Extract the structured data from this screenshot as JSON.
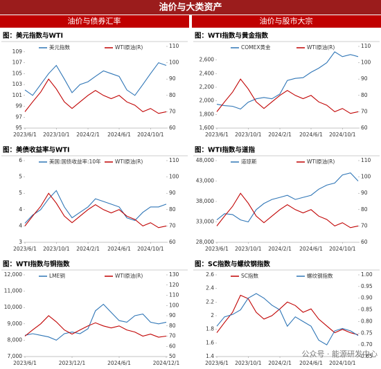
{
  "header": {
    "title": "油价与大类资产",
    "sections": [
      "油价与债券汇率",
      "油价与股市大宗"
    ]
  },
  "watermark": "公众号 · 能源研发中心",
  "chart_data": [
    {
      "type": "line",
      "title": "图：美元指数与WTI",
      "x": [
        "2023/6/1",
        "2023/7/1",
        "2023/8/1",
        "2023/9/1",
        "2023/10/1",
        "2023/11/1",
        "2023/12/1",
        "2024/1/1",
        "2024/2/1",
        "2024/3/1",
        "2024/4/1",
        "2024/5/1",
        "2024/6/1",
        "2024/7/1",
        "2024/8/1",
        "2024/9/1",
        "2024/10/1",
        "2024/11/1",
        "2024/12/1"
      ],
      "xlim": [
        "2023/6/1",
        "2024/12/1"
      ],
      "xticks": [
        "2023/6/1",
        "2023/10/1",
        "2024/2/1",
        "2024/6/1",
        "2024/10/1"
      ],
      "ylim": [
        95,
        110
      ],
      "yticks": [
        95,
        97,
        99,
        101,
        103,
        105,
        107,
        109
      ],
      "y2lim": [
        60,
        110
      ],
      "y2ticks": [
        60,
        70,
        80,
        90,
        100,
        110
      ],
      "series": [
        {
          "name": "美元指数",
          "color": "#2e75b6",
          "values": [
            102,
            101,
            103,
            105,
            106.5,
            104,
            101.5,
            103,
            103.5,
            104.5,
            105.5,
            105,
            104.5,
            102,
            101,
            103,
            105,
            107,
            106.5
          ]
        },
        {
          "name": "WTI原油(R)",
          "color": "#c00000",
          "axis": "y2",
          "values": [
            70,
            76,
            82,
            90,
            84,
            76,
            72,
            76,
            80,
            83,
            80,
            78,
            80,
            76,
            74,
            70,
            72,
            69,
            70
          ]
        }
      ]
    },
    {
      "type": "line",
      "title": "图：WTI指数与黄金指数",
      "x": [
        "2023/6/1",
        "2023/7/1",
        "2023/8/1",
        "2023/9/1",
        "2023/10/1",
        "2023/11/1",
        "2023/12/1",
        "2024/1/1",
        "2024/2/1",
        "2024/3/1",
        "2024/4/1",
        "2024/5/1",
        "2024/6/1",
        "2024/7/1",
        "2024/8/1",
        "2024/9/1",
        "2024/10/1",
        "2024/11/1",
        "2024/12/1"
      ],
      "xlim": [
        "2023/6/1",
        "2024/12/1"
      ],
      "xticks": [
        "2023/6/1",
        "2023/10/1",
        "2024/2/1",
        "2024/6/1",
        "2024/10/1"
      ],
      "ylim": [
        1600,
        2800
      ],
      "yticks": [
        {
          "value": 1600,
          "label": "1,600"
        },
        {
          "value": 1800,
          "label": "1,800"
        },
        {
          "value": 2000,
          "label": "2,000"
        },
        {
          "value": 2200,
          "label": "2,200"
        },
        {
          "value": 2400,
          "label": "2,400"
        },
        {
          "value": 2600,
          "label": "2,600"
        }
      ],
      "y2lim": [
        60,
        110
      ],
      "y2ticks": [
        60,
        70,
        80,
        90,
        100,
        110
      ],
      "series": [
        {
          "name": "COMEX黄金",
          "color": "#2e75b6",
          "values": [
            1950,
            1930,
            1920,
            1880,
            1980,
            2030,
            2050,
            2030,
            2100,
            2300,
            2330,
            2340,
            2420,
            2480,
            2560,
            2720,
            2650,
            2680,
            2650
          ]
        },
        {
          "name": "WTI原油(R)",
          "color": "#c00000",
          "axis": "y2",
          "values": [
            70,
            76,
            82,
            90,
            84,
            76,
            72,
            76,
            80,
            83,
            80,
            78,
            80,
            76,
            74,
            70,
            72,
            69,
            70
          ]
        }
      ]
    },
    {
      "type": "line",
      "title": "图：美债收益率与WTI",
      "x": [
        "2023/6/1",
        "2023/7/1",
        "2023/8/1",
        "2023/9/1",
        "2023/10/1",
        "2023/11/1",
        "2023/12/1",
        "2024/1/1",
        "2024/2/1",
        "2024/3/1",
        "2024/4/1",
        "2024/5/1",
        "2024/6/1",
        "2024/7/1",
        "2024/8/1",
        "2024/9/1",
        "2024/10/1",
        "2024/11/1",
        "2024/12/1"
      ],
      "xlim": [
        "2023/6/1",
        "2024/12/1"
      ],
      "xticks": [
        "2023/6/1",
        "2023/10/1",
        "2024/2/1",
        "2024/6/1",
        "2024/10/1"
      ],
      "ylim": [
        3,
        6
      ],
      "yticks": [
        3,
        {
          "value": 3.6,
          "label": "4"
        },
        {
          "value": 4.2,
          "label": "4"
        },
        {
          "value": 4.8,
          "label": "5"
        },
        {
          "value": 5.4,
          "label": "5"
        },
        6
      ],
      "y2lim": [
        60,
        110
      ],
      "y2ticks": [
        60,
        70,
        80,
        90,
        100,
        110
      ],
      "series": [
        {
          "name": "美国:国债收益率:10年",
          "color": "#2e75b6",
          "values": [
            3.7,
            4.0,
            4.2,
            4.6,
            4.9,
            4.3,
            3.9,
            4.1,
            4.3,
            4.6,
            4.5,
            4.4,
            4.3,
            3.9,
            3.8,
            4.1,
            4.3,
            4.3,
            4.4
          ]
        },
        {
          "name": "WTI原油(R)",
          "color": "#c00000",
          "axis": "y2",
          "values": [
            70,
            76,
            82,
            90,
            84,
            76,
            72,
            76,
            80,
            83,
            80,
            78,
            80,
            76,
            74,
            70,
            72,
            69,
            70
          ]
        }
      ]
    },
    {
      "type": "line",
      "title": "图：WTI指数与道指",
      "x": [
        "2023/6/1",
        "2023/7/1",
        "2023/8/1",
        "2023/9/1",
        "2023/10/1",
        "2023/11/1",
        "2023/12/1",
        "2024/1/1",
        "2024/2/1",
        "2024/3/1",
        "2024/4/1",
        "2024/5/1",
        "2024/6/1",
        "2024/7/1",
        "2024/8/1",
        "2024/9/1",
        "2024/10/1",
        "2024/11/1",
        "2024/12/1"
      ],
      "xlim": [
        "2023/6/1",
        "2024/12/1"
      ],
      "xticks": [
        "2023/6/1",
        "2023/10/1",
        "2024/2/1",
        "2024/6/1",
        "2024/10/1"
      ],
      "ylim": [
        28000,
        48000
      ],
      "yticks": [
        {
          "value": 28000,
          "label": "28,000"
        },
        {
          "value": 33000,
          "label": "33,000"
        },
        {
          "value": 38000,
          "label": "38,000"
        },
        {
          "value": 43000,
          "label": "43,000"
        },
        {
          "value": 48000,
          "label": "48,000"
        }
      ],
      "y2lim": [
        60,
        110
      ],
      "y2ticks": [
        60,
        70,
        80,
        90,
        100,
        110
      ],
      "series": [
        {
          "name": "道琼斯",
          "color": "#2e75b6",
          "values": [
            33500,
            35000,
            34800,
            33500,
            33000,
            36000,
            37500,
            38500,
            39000,
            39500,
            38500,
            39000,
            39500,
            41000,
            42000,
            42500,
            44500,
            45000,
            43000
          ]
        },
        {
          "name": "WTI原油(R)",
          "color": "#c00000",
          "axis": "y2",
          "values": [
            70,
            76,
            82,
            90,
            84,
            76,
            72,
            76,
            80,
            83,
            80,
            78,
            80,
            76,
            74,
            70,
            72,
            69,
            70
          ]
        }
      ]
    },
    {
      "type": "line",
      "title": "图：WTI指数与铜指数",
      "x": [
        "2023/6/1",
        "2023/7/1",
        "2023/8/1",
        "2023/9/1",
        "2023/10/1",
        "2023/11/1",
        "2023/12/1",
        "2024/1/1",
        "2024/2/1",
        "2024/3/1",
        "2024/4/1",
        "2024/5/1",
        "2024/6/1",
        "2024/7/1",
        "2024/8/1",
        "2024/9/1",
        "2024/10/1",
        "2024/11/1",
        "2024/12/1"
      ],
      "xlim": [
        "2023/6/1",
        "2024/12/1"
      ],
      "xticks": [
        "2023/6/1",
        "2023/12/1",
        "2024/6/1",
        "2024/12/1"
      ],
      "ylim": [
        7000,
        12000
      ],
      "yticks": [
        {
          "value": 7000,
          "label": "7,000"
        },
        {
          "value": 8000,
          "label": "8,000"
        },
        {
          "value": 9000,
          "label": "9,000"
        },
        {
          "value": 10000,
          "label": "10,000"
        },
        {
          "value": 11000,
          "label": "11,000"
        },
        {
          "value": 12000,
          "label": "12,000"
        }
      ],
      "y2lim": [
        50,
        130
      ],
      "y2ticks": [
        50,
        60,
        70,
        80,
        90,
        100,
        110,
        120,
        130
      ],
      "series": [
        {
          "name": "LME铜",
          "color": "#2e75b6",
          "values": [
            8300,
            8400,
            8300,
            8200,
            8000,
            8400,
            8500,
            8400,
            8700,
            9800,
            10200,
            9700,
            9200,
            9100,
            9500,
            9600,
            9100,
            9000,
            9100
          ]
        },
        {
          "name": "WTI原油(R)",
          "color": "#c00000",
          "axis": "y2",
          "values": [
            70,
            76,
            82,
            90,
            84,
            76,
            72,
            76,
            80,
            83,
            80,
            78,
            80,
            76,
            74,
            70,
            72,
            69,
            70
          ]
        }
      ]
    },
    {
      "type": "line",
      "title": "图：SC指数与螺纹钢指数",
      "x": [
        "2023/6/1",
        "2023/7/1",
        "2023/8/1",
        "2023/9/1",
        "2023/10/1",
        "2023/11/1",
        "2023/12/1",
        "2024/1/1",
        "2024/2/1",
        "2024/3/1",
        "2024/4/1",
        "2024/5/1",
        "2024/6/1",
        "2024/7/1",
        "2024/8/1",
        "2024/9/1",
        "2024/10/1",
        "2024/11/1",
        "2024/12/1"
      ],
      "xlim": [
        "2023/6/1",
        "2024/12/1"
      ],
      "xticks": [
        "2023/6/1",
        "2023/10/1",
        "2024/2/1",
        "2024/6/1",
        "2024/10/1"
      ],
      "ylim": [
        1.4,
        2.6
      ],
      "yticks": [
        1.4,
        1.6,
        1.8,
        2,
        2.2,
        2.4,
        2.6
      ],
      "y2lim": [
        0.65,
        1
      ],
      "y2ticks": [
        0.65,
        {
          "value": 0.7,
          "label": "0.70"
        },
        0.75,
        {
          "value": 0.8,
          "label": "0.80"
        },
        0.85,
        {
          "value": 0.9,
          "label": "0.90"
        },
        0.95,
        {
          "value": 1,
          "label": "1.00"
        }
      ],
      "series": [
        {
          "name": "SC指数",
          "color": "#c00000",
          "values": [
            1.75,
            1.9,
            2.05,
            2.3,
            2.25,
            2.05,
            1.95,
            2.0,
            2.1,
            2.2,
            2.15,
            2.05,
            2.1,
            1.95,
            1.85,
            1.75,
            1.8,
            1.75,
            1.72
          ]
        },
        {
          "name": "螺纹钢指数",
          "color": "#2e75b6",
          "axis": "y2",
          "values": [
            0.78,
            0.82,
            0.83,
            0.85,
            0.9,
            0.92,
            0.9,
            0.87,
            0.85,
            0.78,
            0.82,
            0.8,
            0.78,
            0.72,
            0.7,
            0.76,
            0.77,
            0.76,
            0.74
          ]
        }
      ]
    }
  ]
}
